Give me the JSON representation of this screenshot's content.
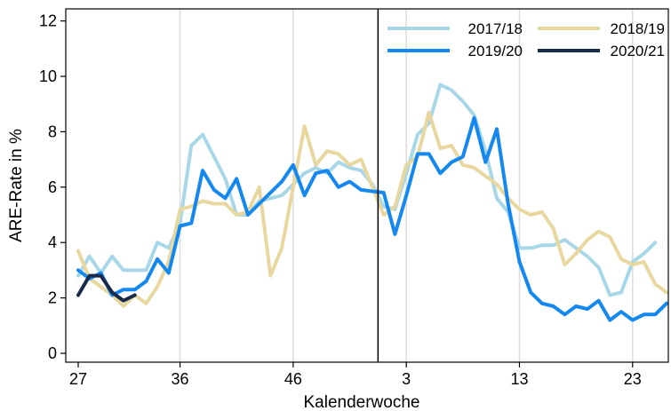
{
  "chart_data": {
    "type": "line",
    "title": "",
    "xlabel": "Kalenderwoche",
    "ylabel": "ARE-Rate in %",
    "ylim": [
      0,
      12.5
    ],
    "yticks": [
      0,
      2,
      4,
      6,
      8,
      10,
      12
    ],
    "xticks": [
      {
        "index": 0,
        "label": "27"
      },
      {
        "index": 9,
        "label": "36"
      },
      {
        "index": 19,
        "label": "46"
      },
      {
        "index": 29,
        "label": "3"
      },
      {
        "index": 39,
        "label": "13"
      },
      {
        "index": 49,
        "label": "23"
      }
    ],
    "year_boundary_index": 26.5,
    "grid": "vertical",
    "legend_position": "top-right",
    "series": [
      {
        "name": "2017/18",
        "color": "#a8d8e8",
        "values": [
          2.8,
          3.5,
          2.9,
          3.5,
          3.0,
          3.0,
          3.0,
          4.0,
          3.8,
          4.7,
          7.5,
          7.9,
          7.1,
          6.3,
          5.0,
          5.0,
          5.5,
          5.6,
          5.7,
          6.1,
          6.5,
          6.7,
          6.5,
          6.9,
          6.7,
          6.6,
          6.1,
          5.3,
          5.2,
          6.5,
          7.9,
          8.3,
          9.7,
          9.5,
          9.1,
          8.6,
          7.3,
          5.6,
          5.1,
          3.8,
          3.8,
          3.9,
          3.9,
          4.1,
          3.8,
          3.5,
          3.1,
          2.1,
          2.2,
          3.3,
          3.6,
          4.0
        ]
      },
      {
        "name": "2018/19",
        "color": "#e8d8a0",
        "values": [
          3.7,
          2.7,
          2.4,
          2.1,
          1.7,
          2.1,
          1.8,
          2.4,
          3.3,
          5.2,
          5.3,
          5.5,
          5.4,
          5.4,
          5.0,
          5.1,
          6.0,
          2.8,
          3.8,
          6.0,
          8.2,
          6.8,
          7.3,
          7.2,
          6.8,
          7.0,
          6.0,
          5.0,
          5.3,
          6.8,
          7.1,
          8.7,
          7.4,
          7.5,
          6.8,
          6.7,
          6.4,
          6.1,
          5.6,
          5.2,
          5.0,
          5.1,
          4.5,
          3.2,
          3.6,
          4.1,
          4.4,
          4.2,
          3.4,
          3.2,
          3.3,
          2.5,
          2.2
        ]
      },
      {
        "name": "2019/20",
        "color": "#1588f0",
        "values": [
          3.0,
          2.7,
          2.9,
          2.1,
          2.3,
          2.3,
          2.6,
          3.4,
          2.9,
          4.6,
          4.7,
          6.6,
          5.9,
          5.6,
          6.3,
          5.0,
          5.4,
          5.8,
          6.2,
          6.8,
          5.7,
          6.5,
          6.6,
          6.0,
          6.2,
          5.9,
          5.85,
          5.8,
          4.3,
          5.7,
          7.2,
          7.2,
          6.5,
          6.9,
          7.1,
          8.5,
          6.9,
          8.1,
          5.4,
          3.3,
          2.2,
          1.8,
          1.7,
          1.4,
          1.7,
          1.6,
          1.9,
          1.2,
          1.5,
          1.2,
          1.4,
          1.4,
          1.8
        ]
      },
      {
        "name": "2020/21",
        "color": "#1a2a4a",
        "values": [
          2.1,
          2.8,
          2.8,
          2.2,
          1.9,
          2.1
        ]
      }
    ]
  }
}
